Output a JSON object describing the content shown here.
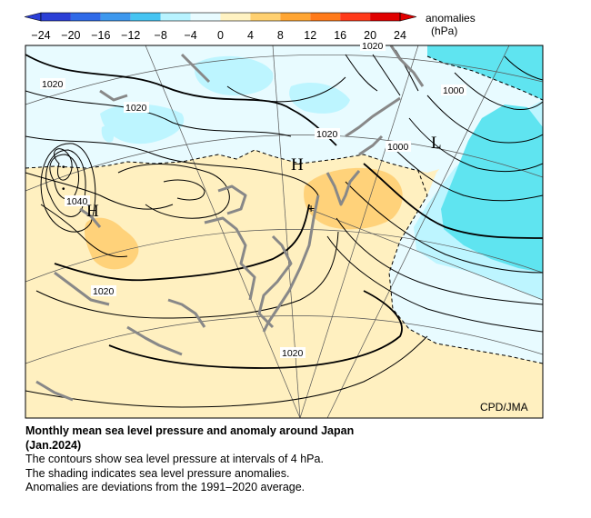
{
  "legend": {
    "title": "anomalies",
    "unit": "(hPa)",
    "ticks": [
      "−24",
      "−20",
      "−16",
      "−12",
      "−8",
      "−4",
      "0",
      "4",
      "8",
      "12",
      "16",
      "20",
      "24"
    ],
    "colors": [
      "#2b3fd6",
      "#2f6ae8",
      "#3d98ee",
      "#46c4f2",
      "#b8f3ff",
      "#e8fbff",
      "#ffffff",
      "#fff2c2",
      "#ffd070",
      "#ffa533",
      "#ff7a1a",
      "#ff3a1a",
      "#e00000"
    ]
  },
  "map": {
    "credit": "CPD/JMA",
    "centers": {
      "high1": "H",
      "high2": "H",
      "low": "L"
    },
    "contour_labels": {
      "c1020_nw": "1020",
      "c1020_w": "1020",
      "c1020_n": "1020",
      "c1020_center": "1020",
      "c1040": "1040",
      "c1020_sw": "1020",
      "c1020_s": "1020",
      "c1000_e": "1000",
      "c1000_ne": "1000"
    },
    "colors": {
      "positive": "#fff0c0",
      "positive_strong": "#ffd27a",
      "negative": "#e8fbff",
      "negative_mid": "#bdf5ff",
      "negative_strong": "#5fe4f0",
      "land": "#888888"
    }
  },
  "caption": {
    "title": "Monthly mean sea level pressure and anomaly around Japan",
    "title2": "(Jan.2024)",
    "line1": "The contours show sea level pressure at intervals of 4 hPa.",
    "line2": "The shading indicates sea level pressure anomalies.",
    "line3": "Anomalies are deviations from the 1991–2020 average."
  }
}
